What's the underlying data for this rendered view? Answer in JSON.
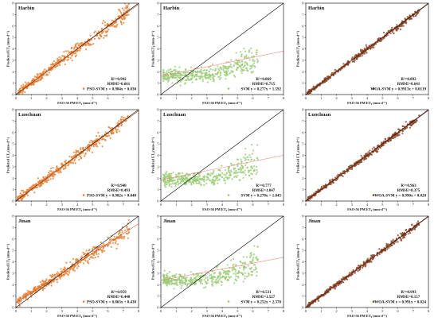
{
  "figure": {
    "xlabel": "FAO-56 PM ET₀ (mm·d⁻¹)",
    "ylabel": "Predicted ET₀ (mm·d⁻¹)",
    "colors": {
      "pso": "#e8833a",
      "svm": "#9ccc7a",
      "woa": "#8b4a2a",
      "svm_fit": "#ee8a7a",
      "one_to_one": "#000000"
    }
  },
  "chart_data": [
    {
      "type": "scatter",
      "station": "Harbin",
      "model": "PSO-SVM",
      "r2": "R²=0.992",
      "rmse": "RMSE=0.661",
      "fit_label": "PSO-SVM  y = 0.984x + 0.030",
      "slope": 0.984,
      "intercept": 0.03,
      "color": "#e8833a",
      "xlim": [
        0,
        8
      ],
      "ylim": [
        0,
        8
      ],
      "xticks": [
        "0",
        "1",
        "2",
        "3",
        "4",
        "5",
        "6",
        "7",
        "8"
      ],
      "yticks": [
        "0",
        "1",
        "2",
        "3",
        "4",
        "5",
        "6",
        "7",
        "8"
      ]
    },
    {
      "type": "scatter",
      "station": "Harbin",
      "model": "SVM",
      "r2": "R²=0.869",
      "rmse": "RMSE=0.715",
      "fit_label": "SVM  y = 0.277x + 1.592",
      "slope": 0.277,
      "intercept": 1.592,
      "color": "#9ccc7a",
      "xlim": [
        0,
        8
      ],
      "ylim": [
        0,
        8
      ],
      "xticks": [
        "0",
        "1",
        "2",
        "3",
        "4",
        "5",
        "6",
        "7",
        "8"
      ],
      "yticks": [
        "0",
        "1",
        "2",
        "3",
        "4",
        "5",
        "6",
        "7",
        "8"
      ]
    },
    {
      "type": "scatter",
      "station": "Harbin",
      "model": "WOA-SVM",
      "r2": "R²=0.892",
      "rmse": "RMSE=0.641",
      "fit_label": "WOA-SVM  y = 0.9913x + 0.0139",
      "slope": 0.9913,
      "intercept": 0.0139,
      "color": "#8b4a2a",
      "xlim": [
        0,
        8
      ],
      "ylim": [
        0,
        8
      ],
      "xticks": [
        "0",
        "1",
        "2",
        "3",
        "4",
        "5",
        "6",
        "7",
        "8"
      ],
      "yticks": [
        "0",
        "1",
        "2",
        "3",
        "4",
        "5",
        "6",
        "7",
        "8"
      ]
    },
    {
      "type": "scatter",
      "station": "Luochuan",
      "model": "PSO-SVM",
      "r2": "R²=0.940",
      "rmse": "RMSE=0.493",
      "fit_label": "PSO-SVM  y = 0.982x + 0.040",
      "slope": 0.982,
      "intercept": 0.04,
      "color": "#e8833a",
      "xlim": [
        0,
        8
      ],
      "ylim": [
        0,
        8
      ],
      "xticks": [
        "0",
        "1",
        "2",
        "3",
        "4",
        "5",
        "6",
        "7",
        "8"
      ],
      "yticks": [
        "0",
        "1",
        "2",
        "3",
        "4",
        "5",
        "6",
        "7",
        "8"
      ]
    },
    {
      "type": "scatter",
      "station": "Luochuan",
      "model": "SVM",
      "r2": "R²=0.777",
      "rmse": "RMSE=1.047",
      "fit_label": "SVM  y = 0.270x + 1.845",
      "slope": 0.27,
      "intercept": 1.845,
      "color": "#9ccc7a",
      "xlim": [
        0,
        8
      ],
      "ylim": [
        0,
        8
      ],
      "xticks": [
        "0",
        "1",
        "2",
        "3",
        "4",
        "5",
        "6",
        "7",
        "8"
      ],
      "yticks": [
        "0",
        "1",
        "2",
        "3",
        "4",
        "5",
        "6",
        "7",
        "8"
      ]
    },
    {
      "type": "scatter",
      "station": "Luochuan",
      "model": "WOA-SVM",
      "r2": "R²=0.963",
      "rmse": "RMSE=0.375",
      "fit_label": "WOA-SVM  y = 0.990x + 0.020",
      "slope": 0.99,
      "intercept": 0.02,
      "color": "#8b4a2a",
      "xlim": [
        0,
        8
      ],
      "ylim": [
        0,
        8
      ],
      "xticks": [
        "0",
        "1",
        "2",
        "3",
        "4",
        "5",
        "6",
        "7",
        "8"
      ],
      "yticks": [
        "0",
        "1",
        "2",
        "3",
        "4",
        "5",
        "6",
        "7",
        "8"
      ]
    },
    {
      "type": "scatter",
      "station": "Jinan",
      "model": "PSO-SVM",
      "r2": "R²=0.959",
      "rmse": "RMSE=0.440",
      "fit_label": "PSO-SVM  y = 0.863x + 0.430",
      "slope": 0.863,
      "intercept": 0.43,
      "color": "#e8833a",
      "xlim": [
        0,
        8
      ],
      "ylim": [
        0,
        8
      ],
      "xticks": [
        "0",
        "1",
        "2",
        "3",
        "4",
        "5",
        "6",
        "7",
        "8"
      ],
      "yticks": [
        "0",
        "1",
        "2",
        "3",
        "4",
        "5",
        "6",
        "7",
        "8"
      ]
    },
    {
      "type": "scatter",
      "station": "Jinan",
      "model": "SVM",
      "r2": "R²=0.531",
      "rmse": "RMSE=1.527",
      "fit_label": "SVM  y = 0.252x + 2.370",
      "slope": 0.252,
      "intercept": 2.37,
      "color": "#9ccc7a",
      "xlim": [
        0,
        8
      ],
      "ylim": [
        0,
        8
      ],
      "xticks": [
        "0",
        "1",
        "2",
        "3",
        "4",
        "5",
        "6",
        "7",
        "8"
      ],
      "yticks": [
        "0",
        "1",
        "2",
        "3",
        "4",
        "5",
        "6",
        "7",
        "8"
      ]
    },
    {
      "type": "scatter",
      "station": "Jinan",
      "model": "WOA-SVM",
      "r2": "R²=0.993",
      "rmse": "RMSE=0.157",
      "fit_label": "WOA-SVM  y = 0.991x + 0.024",
      "slope": 0.991,
      "intercept": 0.024,
      "color": "#8b4a2a",
      "xlim": [
        0,
        8
      ],
      "ylim": [
        0,
        8
      ],
      "xticks": [
        "0",
        "1",
        "2",
        "3",
        "4",
        "5",
        "6",
        "7",
        "8"
      ],
      "yticks": [
        "0",
        "1",
        "2",
        "3",
        "4",
        "5",
        "6",
        "7",
        "8"
      ]
    }
  ]
}
